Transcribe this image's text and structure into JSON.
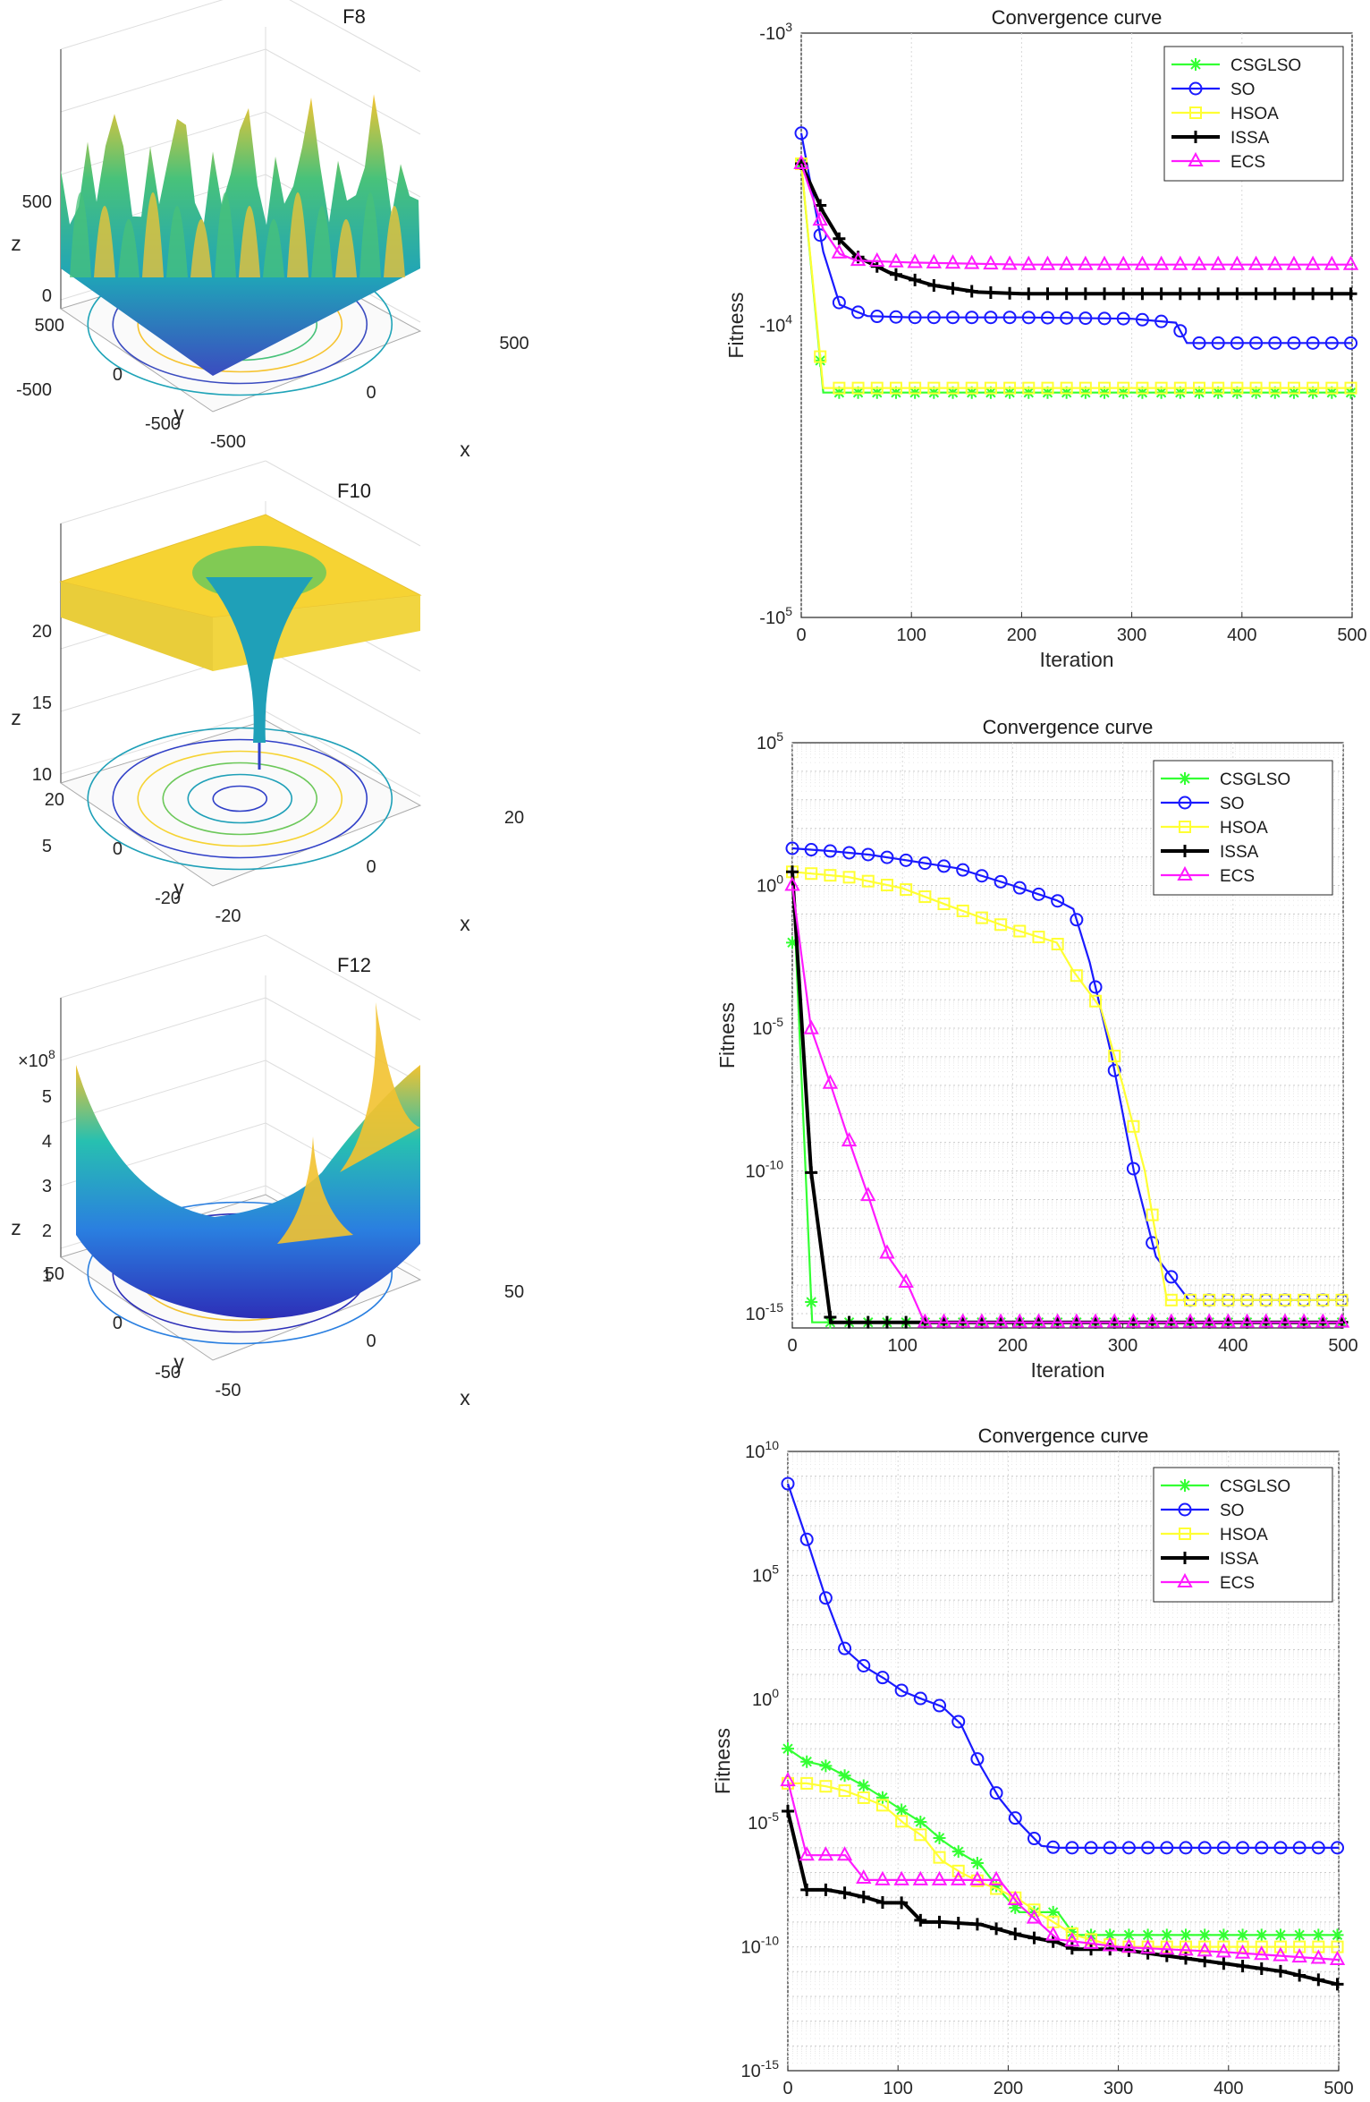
{
  "surfaces": [
    {
      "title": "F8",
      "xlabel": "x",
      "ylabel": "y",
      "zlabel": "z",
      "zticks": [
        "500",
        "0",
        "-500"
      ],
      "xticks": [
        "-500",
        "0",
        "500"
      ],
      "yticks": [
        "500",
        "0",
        "-500"
      ],
      "multiplier": "",
      "colors": [
        "#3b4cc0",
        "#20a4b8",
        "#48c27a",
        "#f6c431"
      ]
    },
    {
      "title": "F10",
      "xlabel": "x",
      "ylabel": "y",
      "zlabel": "z",
      "zticks": [
        "20",
        "15",
        "10",
        "5"
      ],
      "xticks": [
        "-20",
        "0",
        "20"
      ],
      "yticks": [
        "20",
        "0",
        "-20"
      ],
      "multiplier": "",
      "colors": [
        "#3040c8",
        "#1fa0b8",
        "#6cc85a",
        "#f6d333"
      ]
    },
    {
      "title": "F12",
      "xlabel": "x",
      "ylabel": "y",
      "zlabel": "z",
      "zticks": [
        "5",
        "4",
        "3",
        "2",
        "1"
      ],
      "xticks": [
        "-50",
        "0",
        "50"
      ],
      "yticks": [
        "50",
        "0",
        "-50"
      ],
      "multiplier": "×10",
      "multiplier_exp": "8",
      "colors": [
        "#2d2fb8",
        "#2a7fe0",
        "#27c0b0",
        "#f2c230"
      ]
    }
  ],
  "chart_data": [
    {
      "type": "line",
      "title": "Convergence curve",
      "xlabel": "Iteration",
      "ylabel": "Fitness",
      "yscale": "log",
      "xlim": [
        0,
        500
      ],
      "xticks": [
        "0",
        "100",
        "200",
        "300",
        "400",
        "500"
      ],
      "ytick_labels": [
        {
          "base": "-10",
          "exp": "3"
        },
        {
          "base": "-10",
          "exp": "4"
        },
        {
          "base": "-10",
          "exp": "5"
        }
      ],
      "series": [
        {
          "name": "CSGLSO",
          "color": "#33ff33",
          "marker": "star",
          "x": [
            0,
            20,
            500
          ],
          "y": [
            -2800,
            -17000,
            -17000
          ]
        },
        {
          "name": "SO",
          "color": "#1a1aff",
          "marker": "circle",
          "x": [
            0,
            20,
            35,
            60,
            100,
            200,
            300,
            340,
            350,
            400,
            500
          ],
          "y": [
            -2200,
            -5600,
            -8500,
            -9300,
            -9400,
            -9400,
            -9500,
            -9800,
            -11500,
            -11500,
            -11500
          ]
        },
        {
          "name": "HSOA",
          "color": "#ffff33",
          "marker": "square",
          "x": [
            0,
            20,
            500
          ],
          "y": [
            -2800,
            -16400,
            -16400
          ]
        },
        {
          "name": "ISSA",
          "color": "#000000",
          "marker": "plus",
          "x": [
            0,
            20,
            35,
            50,
            80,
            120,
            160,
            200,
            300,
            400,
            500
          ],
          "y": [
            -2800,
            -4100,
            -5100,
            -5800,
            -6600,
            -7300,
            -7700,
            -7800,
            -7800,
            -7800,
            -7800
          ]
        },
        {
          "name": "ECS",
          "color": "#ff1aff",
          "marker": "triangle",
          "x": [
            0,
            20,
            35,
            50,
            100,
            200,
            300,
            400,
            500
          ],
          "y": [
            -2800,
            -4700,
            -5700,
            -6000,
            -6100,
            -6200,
            -6200,
            -6200,
            -6200
          ]
        }
      ]
    },
    {
      "type": "line",
      "title": "Convergence curve",
      "xlabel": "Iteration",
      "ylabel": "Fitness",
      "yscale": "log",
      "xlim": [
        0,
        500
      ],
      "xticks": [
        "0",
        "100",
        "200",
        "300",
        "400",
        "500"
      ],
      "ytick_labels": [
        {
          "base": "10",
          "exp": "5"
        },
        {
          "base": "10",
          "exp": "0"
        },
        {
          "base": "10",
          "exp": "-5"
        },
        {
          "base": "10",
          "exp": "-10"
        },
        {
          "base": "10",
          "exp": "-15"
        }
      ],
      "series": [
        {
          "name": "CSGLSO",
          "color": "#33ff33",
          "marker": "star",
          "x": [
            0,
            3,
            18,
            30,
            60,
            100,
            200,
            300,
            400,
            500
          ],
          "y": [
            0.01,
            0.01,
            5e-16,
            5e-16,
            5e-16,
            5e-16,
            5e-16,
            5e-16,
            5e-16,
            5e-16
          ]
        },
        {
          "name": "SO",
          "color": "#1a1aff",
          "marker": "circle",
          "x": [
            0,
            35,
            70,
            100,
            150,
            200,
            240,
            255,
            270,
            290,
            310,
            330,
            360,
            400,
            500
          ],
          "y": [
            20,
            16,
            12,
            8,
            4,
            1,
            0.3,
            0.15,
            0.002,
            1e-06,
            1e-10,
            1e-13,
            3e-15,
            3e-15,
            3e-15
          ]
        },
        {
          "name": "HSOA",
          "color": "#ffff33",
          "marker": "square",
          "x": [
            0,
            50,
            100,
            150,
            200,
            240,
            255,
            280,
            300,
            320,
            340,
            360,
            400,
            500
          ],
          "y": [
            3,
            2,
            0.8,
            0.15,
            0.03,
            0.01,
            0.001,
            5e-05,
            1e-07,
            1e-10,
            3e-15,
            3e-15,
            3e-15,
            3e-15
          ]
        },
        {
          "name": "ISSA",
          "color": "#000000",
          "marker": "plus",
          "x": [
            0,
            17,
            35,
            50,
            100,
            200,
            300,
            400,
            500
          ],
          "y": [
            3,
            1e-10,
            5e-16,
            5e-16,
            5e-16,
            5e-16,
            5e-16,
            5e-16,
            5e-16
          ]
        },
        {
          "name": "ECS",
          "color": "#ff1aff",
          "marker": "triangle",
          "x": [
            0,
            17,
            35,
            52,
            70,
            87,
            105,
            120,
            200,
            300,
            400,
            500
          ],
          "y": [
            1,
            1e-05,
            1e-07,
            1e-09,
            1e-11,
            1e-13,
            1e-14,
            5e-16,
            5e-16,
            5e-16,
            5e-16,
            5e-16
          ]
        }
      ]
    },
    {
      "type": "line",
      "title": "Convergence curve",
      "xlabel": "Iteration",
      "ylabel": "Fitness",
      "yscale": "log",
      "xlim": [
        0,
        500
      ],
      "xticks": [
        "0",
        "100",
        "200",
        "300",
        "400",
        "500"
      ],
      "ytick_labels": [
        {
          "base": "10",
          "exp": "10"
        },
        {
          "base": "10",
          "exp": "5"
        },
        {
          "base": "10",
          "exp": "0"
        },
        {
          "base": "10",
          "exp": "-5"
        },
        {
          "base": "10",
          "exp": "-10"
        },
        {
          "base": "10",
          "exp": "-15"
        }
      ],
      "series": [
        {
          "name": "CSGLSO",
          "color": "#33ff33",
          "marker": "star",
          "x": [
            0,
            17,
            35,
            52,
            70,
            87,
            105,
            122,
            140,
            157,
            175,
            192,
            210,
            230,
            245,
            260,
            300,
            400,
            500
          ],
          "y": [
            0.01,
            0.003,
            0.002,
            0.0008,
            0.0003,
            0.0001,
            3e-05,
            1e-05,
            2e-06,
            6e-07,
            2e-07,
            2e-08,
            2.5e-09,
            2.5e-09,
            2.5e-09,
            3e-10,
            3e-10,
            3e-10,
            3e-10
          ]
        },
        {
          "name": "SO",
          "color": "#1a1aff",
          "marker": "circle",
          "x": [
            0,
            17,
            35,
            52,
            70,
            87,
            105,
            122,
            140,
            157,
            175,
            192,
            210,
            230,
            245,
            260,
            300,
            400,
            500
          ],
          "y": [
            500000000.0,
            3000000.0,
            10000.0,
            100.0,
            20,
            7,
            2,
            1,
            0.5,
            0.1,
            0.002,
            0.0001,
            1e-05,
            1.2e-06,
            1e-06,
            1e-06,
            1e-06,
            1e-06,
            1e-06
          ]
        },
        {
          "name": "HSOA",
          "color": "#ffff33",
          "marker": "square",
          "x": [
            0,
            17,
            35,
            52,
            70,
            87,
            105,
            122,
            140,
            157,
            175,
            192,
            210,
            230,
            260,
            300,
            400,
            500
          ],
          "y": [
            0.0004,
            0.0004,
            0.0003,
            0.0002,
            0.0001,
            5e-05,
            1e-05,
            3e-06,
            3e-07,
            1e-07,
            4e-08,
            2e-08,
            8e-09,
            2e-09,
            3e-10,
            1e-10,
            1e-10,
            1e-10
          ]
        },
        {
          "name": "ISSA",
          "color": "#000000",
          "marker": "plus",
          "x": [
            0,
            17,
            35,
            52,
            70,
            87,
            105,
            122,
            140,
            175,
            210,
            245,
            260,
            300,
            350,
            400,
            450,
            500
          ],
          "y": [
            3e-05,
            2e-08,
            2e-08,
            1.5e-08,
            1e-08,
            6e-09,
            6e-09,
            1e-09,
            1e-09,
            8e-10,
            3e-10,
            1.5e-10,
            8e-11,
            8e-11,
            4e-11,
            2e-11,
            1e-11,
            3e-12
          ]
        },
        {
          "name": "ECS",
          "color": "#ff1aff",
          "marker": "triangle",
          "x": [
            0,
            17,
            35,
            52,
            70,
            87,
            105,
            122,
            140,
            157,
            175,
            192,
            210,
            245,
            300,
            400,
            500
          ],
          "y": [
            0.0005,
            5e-07,
            5e-07,
            5e-07,
            5e-08,
            5e-08,
            5e-08,
            5e-08,
            5e-08,
            5e-08,
            5e-08,
            5e-08,
            5e-09,
            2e-10,
            1e-10,
            6e-11,
            3e-11
          ]
        }
      ]
    }
  ]
}
